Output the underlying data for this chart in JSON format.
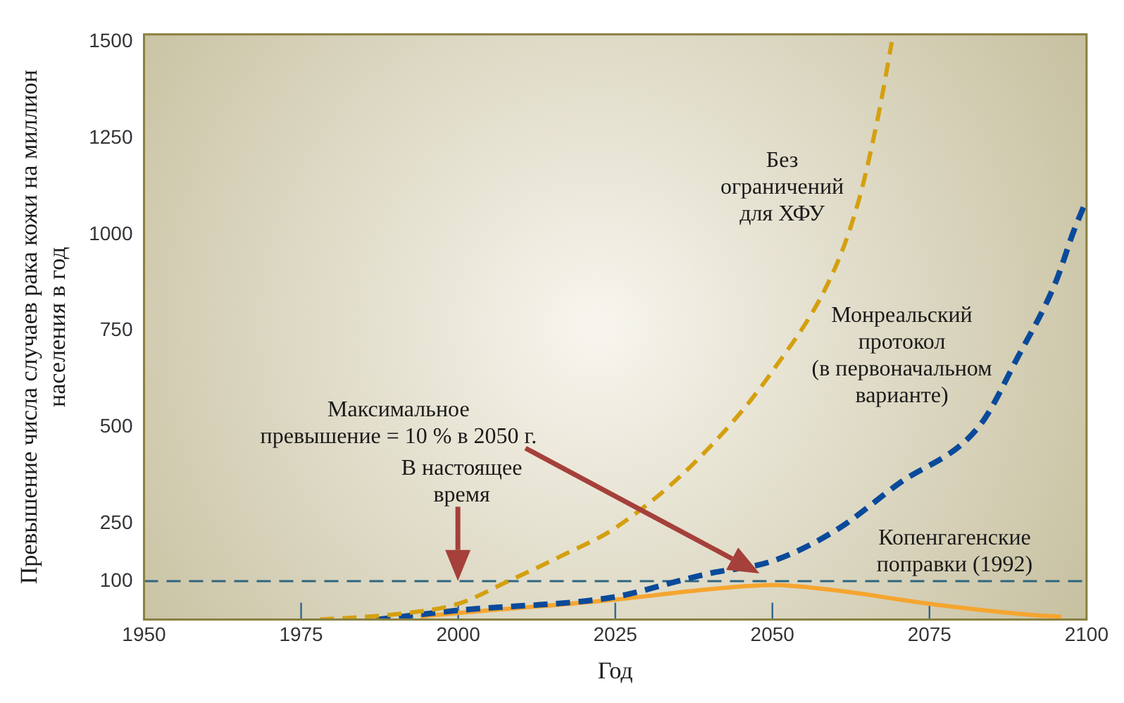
{
  "chart_data": {
    "type": "line",
    "xlabel": "Год",
    "ylabel": "Превышение числа случаев рака кожи на миллион\nнаселения в год",
    "xlim": [
      1950,
      2100
    ],
    "xticks": [
      1950,
      1975,
      2000,
      2025,
      2050,
      2075,
      2100
    ],
    "ylim": [
      0,
      1520
    ],
    "yticks": [
      100,
      250,
      500,
      750,
      1000,
      1250,
      1500
    ],
    "grid": false,
    "legend": false,
    "marker": "none",
    "series": [
      {
        "name": "Без\nограничений\nдля ХФУ",
        "color": "#d4a010",
        "line_style": "dashed",
        "x": [
          1978,
          1990,
          2000,
          2008,
          2017,
          2025,
          2038,
          2050,
          2060,
          2064,
          2067,
          2069
        ],
        "values": [
          0,
          14,
          41,
          100,
          170,
          238,
          414,
          645,
          914,
          1104,
          1321,
          1500
        ]
      },
      {
        "name": "Монреальский\nпротокол\n(в первоначальном\nварианте)",
        "color": "#0a4a9a",
        "line_style": "dashed",
        "x": [
          1987,
          2000,
          2025,
          2035,
          2040,
          2050,
          2060,
          2070,
          2083,
          2089,
          2095,
          2098,
          2100
        ],
        "values": [
          0,
          24,
          59,
          100,
          120,
          152,
          231,
          352,
          504,
          680,
          873,
          1011,
          1090
        ]
      },
      {
        "name": "Копенгагенские\nпоправки (1992)",
        "color": "#f5a530",
        "line_style": "solid",
        "x": [
          1994,
          2000,
          2025,
          2040,
          2050,
          2060,
          2075,
          2090,
          2096
        ],
        "values": [
          8,
          17,
          52,
          79,
          90,
          76,
          41,
          14,
          7
        ]
      }
    ],
    "ref_lines": [
      {
        "axis": "y",
        "value": 100,
        "color": "#2e6680",
        "line_style": "dashed"
      }
    ],
    "annotations": [
      "Максимальное\nпревышение = 10 % в 2050 г.",
      "В настоящее\nвремя"
    ]
  }
}
